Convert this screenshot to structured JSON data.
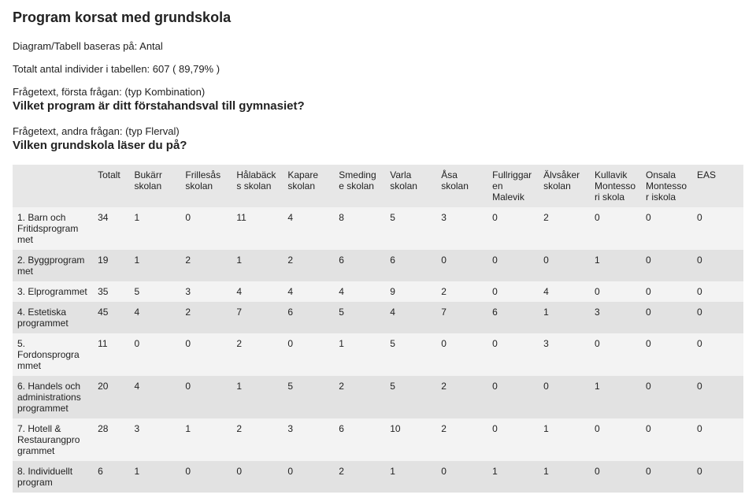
{
  "title": "Program korsat med grundskola",
  "meta1": "Diagram/Tabell baseras på: Antal",
  "meta2": "Totalt antal individer i tabellen: 607 ( 89,79% )",
  "q1_label": "Frågetext, första frågan: (typ Kombination)",
  "q1_text": "Vilket program är ditt förstahandsval till gymnasiet?",
  "q2_label": "Frågetext, andra frågan: (typ Flerval)",
  "q2_text": "Vilken grundskola läser du på?",
  "table": {
    "columns": [
      "",
      "Totalt",
      "Bukärr skolan",
      "Frillesås skolan",
      "Hålabäcks skolan",
      "Kapare skolan",
      "Smedinge skolan",
      "Varla skolan",
      "Åsa skolan",
      "Fullriggaren Malevik",
      "Älvsåker skolan",
      "Kullavik Montessori skola",
      "Onsala Montessor iskola",
      "EAS"
    ],
    "rows": [
      {
        "label": "1. Barn och Fritidsprogram met",
        "cells": [
          "34",
          "1",
          "0",
          "11",
          "4",
          "8",
          "5",
          "3",
          "0",
          "2",
          "0",
          "0",
          "0"
        ]
      },
      {
        "label": "2. Byggprogram met",
        "cells": [
          "19",
          "1",
          "2",
          "1",
          "2",
          "6",
          "6",
          "0",
          "0",
          "0",
          "1",
          "0",
          "0"
        ]
      },
      {
        "label": "3. Elprogrammet",
        "cells": [
          "35",
          "5",
          "3",
          "4",
          "4",
          "4",
          "9",
          "2",
          "0",
          "4",
          "0",
          "0",
          "0"
        ]
      },
      {
        "label": "4. Estetiska programmet",
        "cells": [
          "45",
          "4",
          "2",
          "7",
          "6",
          "5",
          "4",
          "7",
          "6",
          "1",
          "3",
          "0",
          "0"
        ]
      },
      {
        "label": "5. Fordonsprogra mmet",
        "cells": [
          "11",
          "0",
          "0",
          "2",
          "0",
          "1",
          "5",
          "0",
          "0",
          "3",
          "0",
          "0",
          "0"
        ]
      },
      {
        "label": "6. Handels och administrations programmet",
        "cells": [
          "20",
          "4",
          "0",
          "1",
          "5",
          "2",
          "5",
          "2",
          "0",
          "0",
          "1",
          "0",
          "0"
        ]
      },
      {
        "label": "7. Hotell & Restaurangpro grammet",
        "cells": [
          "28",
          "3",
          "1",
          "2",
          "3",
          "6",
          "10",
          "2",
          "0",
          "1",
          "0",
          "0",
          "0"
        ]
      },
      {
        "label": "8. Individuellt program",
        "cells": [
          "6",
          "1",
          "0",
          "0",
          "0",
          "2",
          "1",
          "0",
          "1",
          "1",
          "0",
          "0",
          "0"
        ]
      }
    ],
    "row_colors": {
      "light": "#f3f3f3",
      "dark": "#e2e2e2"
    },
    "header_bg": "#e7e7e7"
  }
}
